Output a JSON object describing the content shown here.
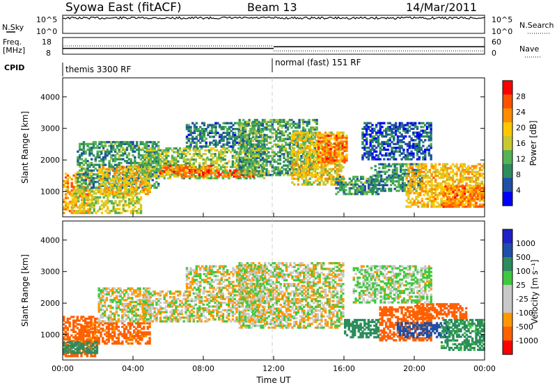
{
  "header": {
    "title": "Syowa East (fitACF)",
    "beam": "Beam 13",
    "date": "14/Mar/2011"
  },
  "colors": {
    "power": [
      "#0000ff",
      "#1f4fa6",
      "#2d8c5c",
      "#55b255",
      "#c8c832",
      "#ffc800",
      "#ff8c00",
      "#ff5000",
      "#ff0000"
    ],
    "velocity": [
      "#ff0000",
      "#ff6000",
      "#ff9800",
      "#c8c8c8",
      "#c8c8c8",
      "#40c840",
      "#2d8c5c",
      "#1f4fa6",
      "#2020c8"
    ]
  },
  "chart_data": [
    {
      "type": "line",
      "panel": "sky-noise",
      "ylabel": "N.Sky",
      "right_label": "N.Search",
      "y_ticks": [
        "10^5",
        "10^0"
      ],
      "y_ticks_right": [
        "10^5",
        "10^0"
      ],
      "noise_level": 0.85
    },
    {
      "type": "line",
      "panel": "frequency",
      "ylabel_line1": "Freq.",
      "ylabel_line2": "[MHz]",
      "left_ticks": [
        "18",
        "8"
      ],
      "right_ticks": [
        "60",
        "0"
      ],
      "right_label": "Nave",
      "frequency_mhz": [
        {
          "start_ut": 0,
          "end_ut": 12,
          "value": 11.5
        },
        {
          "start_ut": 12,
          "end_ut": 24,
          "value": 12.5
        }
      ],
      "nave": [
        {
          "start_ut": 0,
          "end_ut": 12,
          "value": 30
        },
        {
          "start_ut": 12,
          "end_ut": 24,
          "value": 12
        }
      ]
    },
    {
      "type": "table",
      "panel": "cpid",
      "label": "CPID",
      "segments": [
        {
          "start_ut": 0,
          "end_ut": 12,
          "text": "themis 3300 RF"
        },
        {
          "start_ut": 12,
          "end_ut": 24,
          "text": "normal (fast) 151 RF"
        }
      ]
    },
    {
      "type": "heatmap",
      "panel": "power",
      "ylabel": "Slant Range [km]",
      "xlim": [
        0,
        24
      ],
      "ylim": [
        200,
        4600
      ],
      "y_ticks": [
        1000,
        2000,
        3000,
        4000
      ],
      "colorbar_label": "Power [dB]",
      "colorbar_ticks": [
        "28",
        "24",
        "20",
        "16",
        "12",
        "8",
        "4"
      ],
      "regions": [
        {
          "t0": 0,
          "t1": 1.6,
          "r0": 300,
          "r1": 1600,
          "v": 22
        },
        {
          "t0": 0.5,
          "t1": 4.5,
          "r0": 300,
          "r1": 1100,
          "v": 16
        },
        {
          "t0": 0.8,
          "t1": 5.5,
          "r0": 1100,
          "r1": 2600,
          "v": 10
        },
        {
          "t0": 2,
          "t1": 5,
          "r0": 900,
          "r1": 1800,
          "v": 20
        },
        {
          "t0": 4.5,
          "t1": 11.5,
          "r0": 1400,
          "r1": 2400,
          "v": 14
        },
        {
          "t0": 5.5,
          "t1": 8.5,
          "r0": 1550,
          "r1": 1850,
          "v": 24
        },
        {
          "t0": 6.5,
          "t1": 11,
          "r0": 1450,
          "r1": 1700,
          "v": 26
        },
        {
          "t0": 7,
          "t1": 11.5,
          "r0": 2400,
          "r1": 3200,
          "v": 8
        },
        {
          "t0": 10,
          "t1": 14.5,
          "r0": 1500,
          "r1": 3300,
          "v": 11
        },
        {
          "t0": 13,
          "t1": 16,
          "r0": 1200,
          "r1": 2900,
          "v": 18
        },
        {
          "t0": 14.5,
          "t1": 16.2,
          "r0": 1900,
          "r1": 2800,
          "v": 24
        },
        {
          "t0": 15.5,
          "t1": 18,
          "r0": 900,
          "r1": 1500,
          "v": 10
        },
        {
          "t0": 17.5,
          "t1": 20.5,
          "r0": 1000,
          "r1": 1900,
          "v": 9
        },
        {
          "t0": 19.5,
          "t1": 24,
          "r0": 500,
          "r1": 1900,
          "v": 20
        },
        {
          "t0": 21.5,
          "t1": 24,
          "r0": 500,
          "r1": 1200,
          "v": 24
        },
        {
          "t0": 17,
          "t1": 21,
          "r0": 2000,
          "r1": 3200,
          "v": 6
        }
      ]
    },
    {
      "type": "heatmap",
      "panel": "velocity",
      "xlabel": "Time UT",
      "ylabel": "Slant Range [km]",
      "xlim": [
        0,
        24
      ],
      "ylim": [
        200,
        4600
      ],
      "x_ticks": [
        "00:00",
        "04:00",
        "08:00",
        "12:00",
        "16:00",
        "20:00",
        "00:00"
      ],
      "y_ticks": [
        1000,
        2000,
        3000,
        4000
      ],
      "colorbar_label": "Velocity [m s⁻¹]",
      "colorbar_ticks": [
        "1000",
        "500",
        "100",
        "25",
        "-25",
        "-100",
        "-500",
        "-1000"
      ],
      "regions": [
        {
          "t0": 0,
          "t1": 2,
          "r0": 300,
          "r1": 1600,
          "v": -300
        },
        {
          "t0": 1,
          "t1": 5,
          "r0": 700,
          "r1": 1400,
          "v": -150
        },
        {
          "t0": 0,
          "t1": 2,
          "r0": 400,
          "r1": 800,
          "v": 200
        },
        {
          "t0": 2,
          "t1": 5,
          "r0": 1400,
          "r1": 2500,
          "v": 0
        },
        {
          "t0": 4.5,
          "t1": 11.5,
          "r0": 1400,
          "r1": 2400,
          "v": 0
        },
        {
          "t0": 7,
          "t1": 11.5,
          "r0": 2400,
          "r1": 3200,
          "v": 0
        },
        {
          "t0": 10,
          "t1": 16,
          "r0": 1200,
          "r1": 3300,
          "v": 0
        },
        {
          "t0": 16,
          "t1": 18,
          "r0": 900,
          "r1": 1500,
          "v": 200
        },
        {
          "t0": 18,
          "t1": 21,
          "r0": 800,
          "r1": 1900,
          "v": -200
        },
        {
          "t0": 19,
          "t1": 22,
          "r0": 900,
          "r1": 1400,
          "v": 600
        },
        {
          "t0": 21.5,
          "t1": 24,
          "r0": 500,
          "r1": 1500,
          "v": 150
        },
        {
          "t0": 20,
          "t1": 23,
          "r0": 1500,
          "r1": 2000,
          "v": -400
        },
        {
          "t0": 16.5,
          "t1": 21,
          "r0": 2000,
          "r1": 3200,
          "v": 30
        }
      ]
    }
  ]
}
